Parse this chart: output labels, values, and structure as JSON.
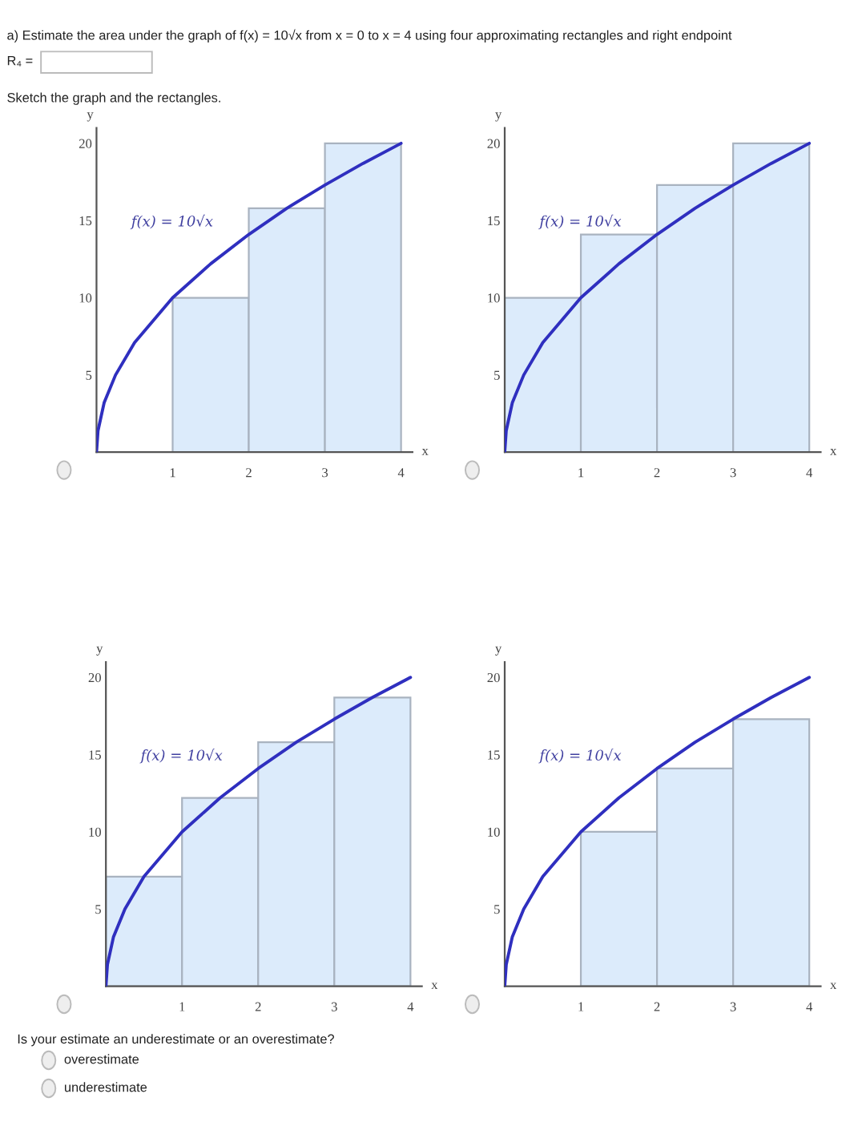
{
  "chart_data": [
    {
      "type": "bar",
      "xlabel": "x",
      "ylabel": "y",
      "xlim": [
        0,
        4.15
      ],
      "ylim": [
        0,
        21
      ],
      "xticks": [
        1,
        2,
        3,
        4
      ],
      "yticks": [
        5,
        10,
        15,
        20
      ],
      "series": [
        {
          "color": "#dcebfb",
          "x": [
            1.5,
            2.5,
            3.5
          ],
          "values": [
            10,
            15.8,
            20
          ]
        },
        {
          "type": "line",
          "color": "#2f2fbf",
          "x": [
            0,
            0.02,
            0.1,
            0.25,
            0.5,
            1,
            1.5,
            2,
            2.5,
            3,
            3.5,
            4
          ],
          "values": [
            0,
            1.4,
            3.2,
            5,
            7.1,
            10,
            12.2,
            14.1,
            15.8,
            17.3,
            18.7,
            20
          ]
        }
      ],
      "annotations": [
        "a) Estimate the area under the graph of f(x) = 10√x from x = 0 to x = 4 using four approximating rectangles and right endpoint",
        "R₄ =",
        "Sketch the graph and the rectangles.",
        "f(x) = 10√x"
      ]
    },
    {
      "type": "bar",
      "xlabel": "x",
      "ylabel": "y",
      "xlim": [
        0,
        4.15
      ],
      "ylim": [
        0,
        21
      ],
      "xticks": [
        1,
        2,
        3,
        4
      ],
      "yticks": [
        5,
        10,
        15,
        20
      ],
      "series": [
        {
          "color": "#dcebfb",
          "x": [
            0.5,
            1.5,
            2.5,
            3.5
          ],
          "values": [
            10,
            14.1,
            17.3,
            20
          ]
        },
        {
          "type": "line",
          "color": "#2f2fbf",
          "x": [
            0,
            0.02,
            0.1,
            0.25,
            0.5,
            1,
            1.5,
            2,
            2.5,
            3,
            3.5,
            4
          ],
          "values": [
            0,
            1.4,
            3.2,
            5,
            7.1,
            10,
            12.2,
            14.1,
            15.8,
            17.3,
            18.7,
            20
          ]
        }
      ],
      "annotations": [
        "f(x) = 10√x"
      ]
    },
    {
      "type": "bar",
      "xlabel": "x",
      "ylabel": "y",
      "xlim": [
        0,
        4.15
      ],
      "ylim": [
        0,
        21
      ],
      "xticks": [
        1,
        2,
        3,
        4
      ],
      "yticks": [
        5,
        10,
        15,
        20
      ],
      "series": [
        {
          "color": "#dcebfb",
          "x": [
            0.5,
            1.5,
            2.5,
            3.5
          ],
          "values": [
            7.1,
            12.2,
            15.8,
            18.7
          ]
        },
        {
          "type": "line",
          "color": "#2f2fbf",
          "x": [
            0,
            0.02,
            0.1,
            0.25,
            0.5,
            1,
            1.5,
            2,
            2.5,
            3,
            3.5,
            4
          ],
          "values": [
            0,
            1.4,
            3.2,
            5,
            7.1,
            10,
            12.2,
            14.1,
            15.8,
            17.3,
            18.7,
            20
          ]
        }
      ],
      "annotations": [
        "f(x) = 10√x",
        "Is your estimate an underestimate or an overestimate?",
        "overestimate",
        "underestimate"
      ]
    },
    {
      "type": "bar",
      "xlabel": "x",
      "ylabel": "y",
      "xlim": [
        0,
        4.15
      ],
      "ylim": [
        0,
        21
      ],
      "xticks": [
        1,
        2,
        3,
        4
      ],
      "yticks": [
        5,
        10,
        15,
        20
      ],
      "series": [
        {
          "color": "#dcebfb",
          "x": [
            1.5,
            2.5,
            3.5
          ],
          "values": [
            10,
            14.1,
            17.3
          ]
        },
        {
          "type": "line",
          "color": "#2f2fbf",
          "x": [
            0,
            0.02,
            0.1,
            0.25,
            0.5,
            1,
            1.5,
            2,
            2.5,
            3,
            3.5,
            4
          ],
          "values": [
            0,
            1.4,
            3.2,
            5,
            7.1,
            10,
            12.2,
            14.1,
            15.8,
            17.3,
            18.7,
            20
          ]
        }
      ],
      "annotations": [
        "f(x) = 10√x"
      ]
    }
  ]
}
